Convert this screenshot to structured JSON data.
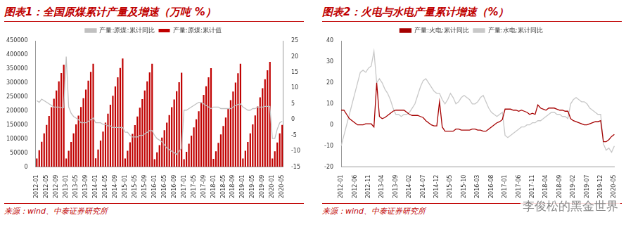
{
  "chart_data": [
    {
      "type": "bar",
      "title": "图表1：全国原煤累计产量及增速（万吨 %）",
      "source": "来源：wind、中泰证券研究所",
      "categories": [
        "2012-01",
        null,
        null,
        null,
        "2012-05",
        null,
        null,
        null,
        "2012-09",
        null,
        null,
        null,
        "2013-01",
        null,
        null,
        null,
        "2013-05",
        null,
        null,
        null,
        "2013-09",
        null,
        null,
        null,
        "2014-01",
        null,
        null,
        null,
        "2014-05",
        null,
        null,
        null,
        "2014-09",
        null,
        null,
        null,
        "2015-01",
        null,
        null,
        null,
        "2015-05",
        null,
        null,
        null,
        "2015-09",
        null,
        null,
        null,
        "2016-01",
        null,
        null,
        null,
        "2016-05",
        null,
        null,
        null,
        "2016-09",
        null,
        null,
        null,
        "2017-01",
        null,
        null,
        null,
        "2017-05",
        null,
        null,
        null,
        "2017-09",
        null,
        null,
        null,
        "2018-01",
        null,
        null,
        null,
        "2018-05",
        null,
        null,
        null,
        "2018-09",
        null,
        null,
        null,
        "2019-01",
        null,
        null,
        null,
        "2019-05",
        null,
        null,
        null,
        "2019-09",
        null,
        null,
        null,
        "2020-01",
        null,
        null,
        null,
        "2020-05"
      ],
      "series": [
        {
          "name": "产量:原煤:累计值",
          "type": "bar",
          "color": "#c00000",
          "values": [
            30000,
            60000,
            90000,
            120000,
            150000,
            182000,
            213000,
            243000,
            273000,
            305000,
            335000,
            365000,
            30000,
            58000,
            89000,
            120000,
            152000,
            183000,
            214000,
            245000,
            276000,
            308000,
            339000,
            368000,
            31000,
            62000,
            94000,
            126000,
            158000,
            190000,
            222000,
            254000,
            287000,
            320000,
            353000,
            387000,
            30000,
            58000,
            88000,
            118000,
            149000,
            180000,
            211000,
            242000,
            273000,
            305000,
            337000,
            368000,
            28000,
            52000,
            78000,
            105000,
            131000,
            158000,
            185000,
            213000,
            241000,
            270000,
            302000,
            336000,
            28000,
            54000,
            83000,
            112000,
            141000,
            170000,
            199000,
            228000,
            257000,
            288000,
            320000,
            352000,
            29000,
            56000,
            86000,
            116000,
            146000,
            176000,
            207000,
            238000,
            269000,
            301000,
            334000,
            368000,
            30000,
            58000,
            89000,
            120000,
            152000,
            184000,
            216000,
            248000,
            281000,
            313000,
            345000,
            375000,
            30000,
            56000,
            87000,
            120000,
            150000
          ]
        },
        {
          "name": "产量:原煤:累计同比",
          "type": "line",
          "color": "#c0c0c0",
          "axis": "y2",
          "values": [
            6,
            5.5,
            6.5,
            6,
            5.5,
            5,
            4.5,
            4,
            4,
            4,
            3.8,
            3.8,
            20,
            4,
            2,
            1,
            0.5,
            0,
            -1,
            -1,
            -1,
            -0.5,
            0,
            0.5,
            -1,
            -1,
            -1,
            -1.5,
            -1.5,
            -2,
            -2,
            -2.5,
            -2.5,
            -2.5,
            -2.5,
            -2.5,
            -4,
            -4,
            -5,
            -5.5,
            -5.5,
            -5.5,
            -5,
            -5,
            -4.5,
            -4,
            -3.5,
            -3.5,
            -5,
            -6,
            -6.5,
            -7,
            -8,
            -9,
            -9.5,
            -10,
            -10.5,
            -11,
            -10,
            -9,
            3,
            3,
            3.5,
            4,
            4.5,
            5,
            5.5,
            5.5,
            5,
            4.5,
            4,
            3.5,
            4,
            4,
            4,
            3.5,
            3.5,
            3.5,
            3.5,
            3.5,
            4,
            4.5,
            4.8,
            5,
            4,
            3.5,
            3,
            3,
            3.5,
            3.5,
            4,
            4,
            4,
            4.2,
            4.2,
            4.2,
            -6,
            -6,
            -3,
            -1,
            -0.5
          ]
        }
      ],
      "ylim": [
        0,
        450000
      ],
      "yticks": [
        0,
        50000,
        100000,
        150000,
        200000,
        250000,
        300000,
        350000,
        400000,
        450000
      ],
      "y2lim": [
        -15,
        25
      ],
      "y2ticks": [
        -15,
        -10,
        -5,
        0,
        5,
        10,
        15,
        20,
        25
      ],
      "grid": false,
      "legend": "top"
    },
    {
      "type": "line",
      "title": "图表2：火电与水电产量累计增速（%）",
      "source": "来源：wind、中泰证券研究所",
      "categories": [
        "2012-01",
        null,
        null,
        null,
        null,
        "2012-06",
        null,
        null,
        null,
        null,
        "2012-11",
        null,
        null,
        null,
        null,
        "2013-04",
        null,
        null,
        null,
        null,
        "2013-09",
        null,
        null,
        null,
        null,
        "2014-02",
        null,
        null,
        null,
        null,
        "2014-07",
        null,
        null,
        null,
        null,
        "2014-12",
        null,
        null,
        null,
        null,
        "2015-05",
        null,
        null,
        null,
        null,
        "2015-10",
        null,
        null,
        null,
        null,
        "2016-03",
        null,
        null,
        null,
        null,
        "2016-08",
        null,
        null,
        null,
        null,
        "2017-01",
        null,
        null,
        null,
        null,
        "2017-06",
        null,
        null,
        null,
        null,
        "2017-11",
        null,
        null,
        null,
        null,
        "2018-04",
        null,
        null,
        null,
        null,
        "2018-09",
        null,
        null,
        null,
        null,
        "2019-02",
        null,
        null,
        null,
        null,
        "2019-07",
        null,
        null,
        null,
        null,
        "2019-12",
        null,
        null,
        null,
        null,
        "2020-05"
      ],
      "series": [
        {
          "name": "产量:火电:累计同比",
          "color": "#a50000",
          "values": [
            7,
            7,
            5,
            3,
            2,
            1,
            0,
            0,
            0,
            0.5,
            0.5,
            0.5,
            -1,
            20,
            4,
            3,
            3.5,
            4.5,
            5.5,
            6.5,
            7,
            7,
            7,
            7,
            6,
            5,
            4.5,
            4.5,
            4.5,
            4,
            3.5,
            2,
            1,
            0,
            -0.5,
            -0.5,
            11,
            -1,
            -3,
            -3,
            -3,
            -3,
            -2,
            -2,
            -2.5,
            -2.5,
            -2.5,
            -2.5,
            -2,
            -2,
            -2.5,
            -2.5,
            -3,
            -3,
            -2,
            -1,
            0,
            1,
            1.5,
            2.5,
            7.5,
            7.5,
            7.5,
            7,
            7,
            6.5,
            7,
            6.5,
            6,
            5,
            5.5,
            5,
            9.5,
            8,
            7.5,
            7,
            8,
            8,
            8,
            7.5,
            7,
            7,
            6.5,
            6.5,
            3,
            2,
            1.5,
            1,
            0.5,
            0,
            0,
            0.5,
            1,
            1.5,
            1.5,
            2,
            -8,
            -8,
            -7,
            -5.5,
            -4.5
          ]
        },
        {
          "name": "产量:水电:累计同比",
          "color": "#c8c8c8",
          "values": [
            -10,
            -5,
            0,
            5,
            10,
            15,
            20,
            25,
            26,
            25,
            27,
            28,
            35,
            20,
            22,
            20,
            17,
            15,
            12,
            8,
            5,
            5,
            4,
            5,
            5,
            6,
            8,
            10,
            14,
            18,
            21,
            22,
            20,
            18,
            16,
            15,
            15,
            12,
            10,
            12,
            15,
            13,
            10,
            11,
            13,
            14,
            13,
            12,
            10,
            10,
            11,
            13,
            14,
            11,
            8,
            6,
            5,
            4,
            5,
            6,
            -5,
            -6,
            -5,
            -4,
            -3,
            -2,
            -1,
            -1,
            0,
            0,
            1,
            1,
            2,
            2,
            3,
            4,
            5,
            6,
            6,
            5,
            5,
            4,
            4,
            3,
            10,
            12,
            13,
            12,
            11,
            11,
            10,
            8,
            7,
            6,
            5,
            5,
            -9,
            -12,
            -11,
            -13,
            -10
          ]
        }
      ],
      "ylim": [
        -20,
        40
      ],
      "yticks": [
        -20,
        -10,
        0,
        10,
        20,
        30,
        40
      ],
      "grid": false,
      "legend": "top"
    }
  ],
  "watermark": "李俊松的黑金世界"
}
